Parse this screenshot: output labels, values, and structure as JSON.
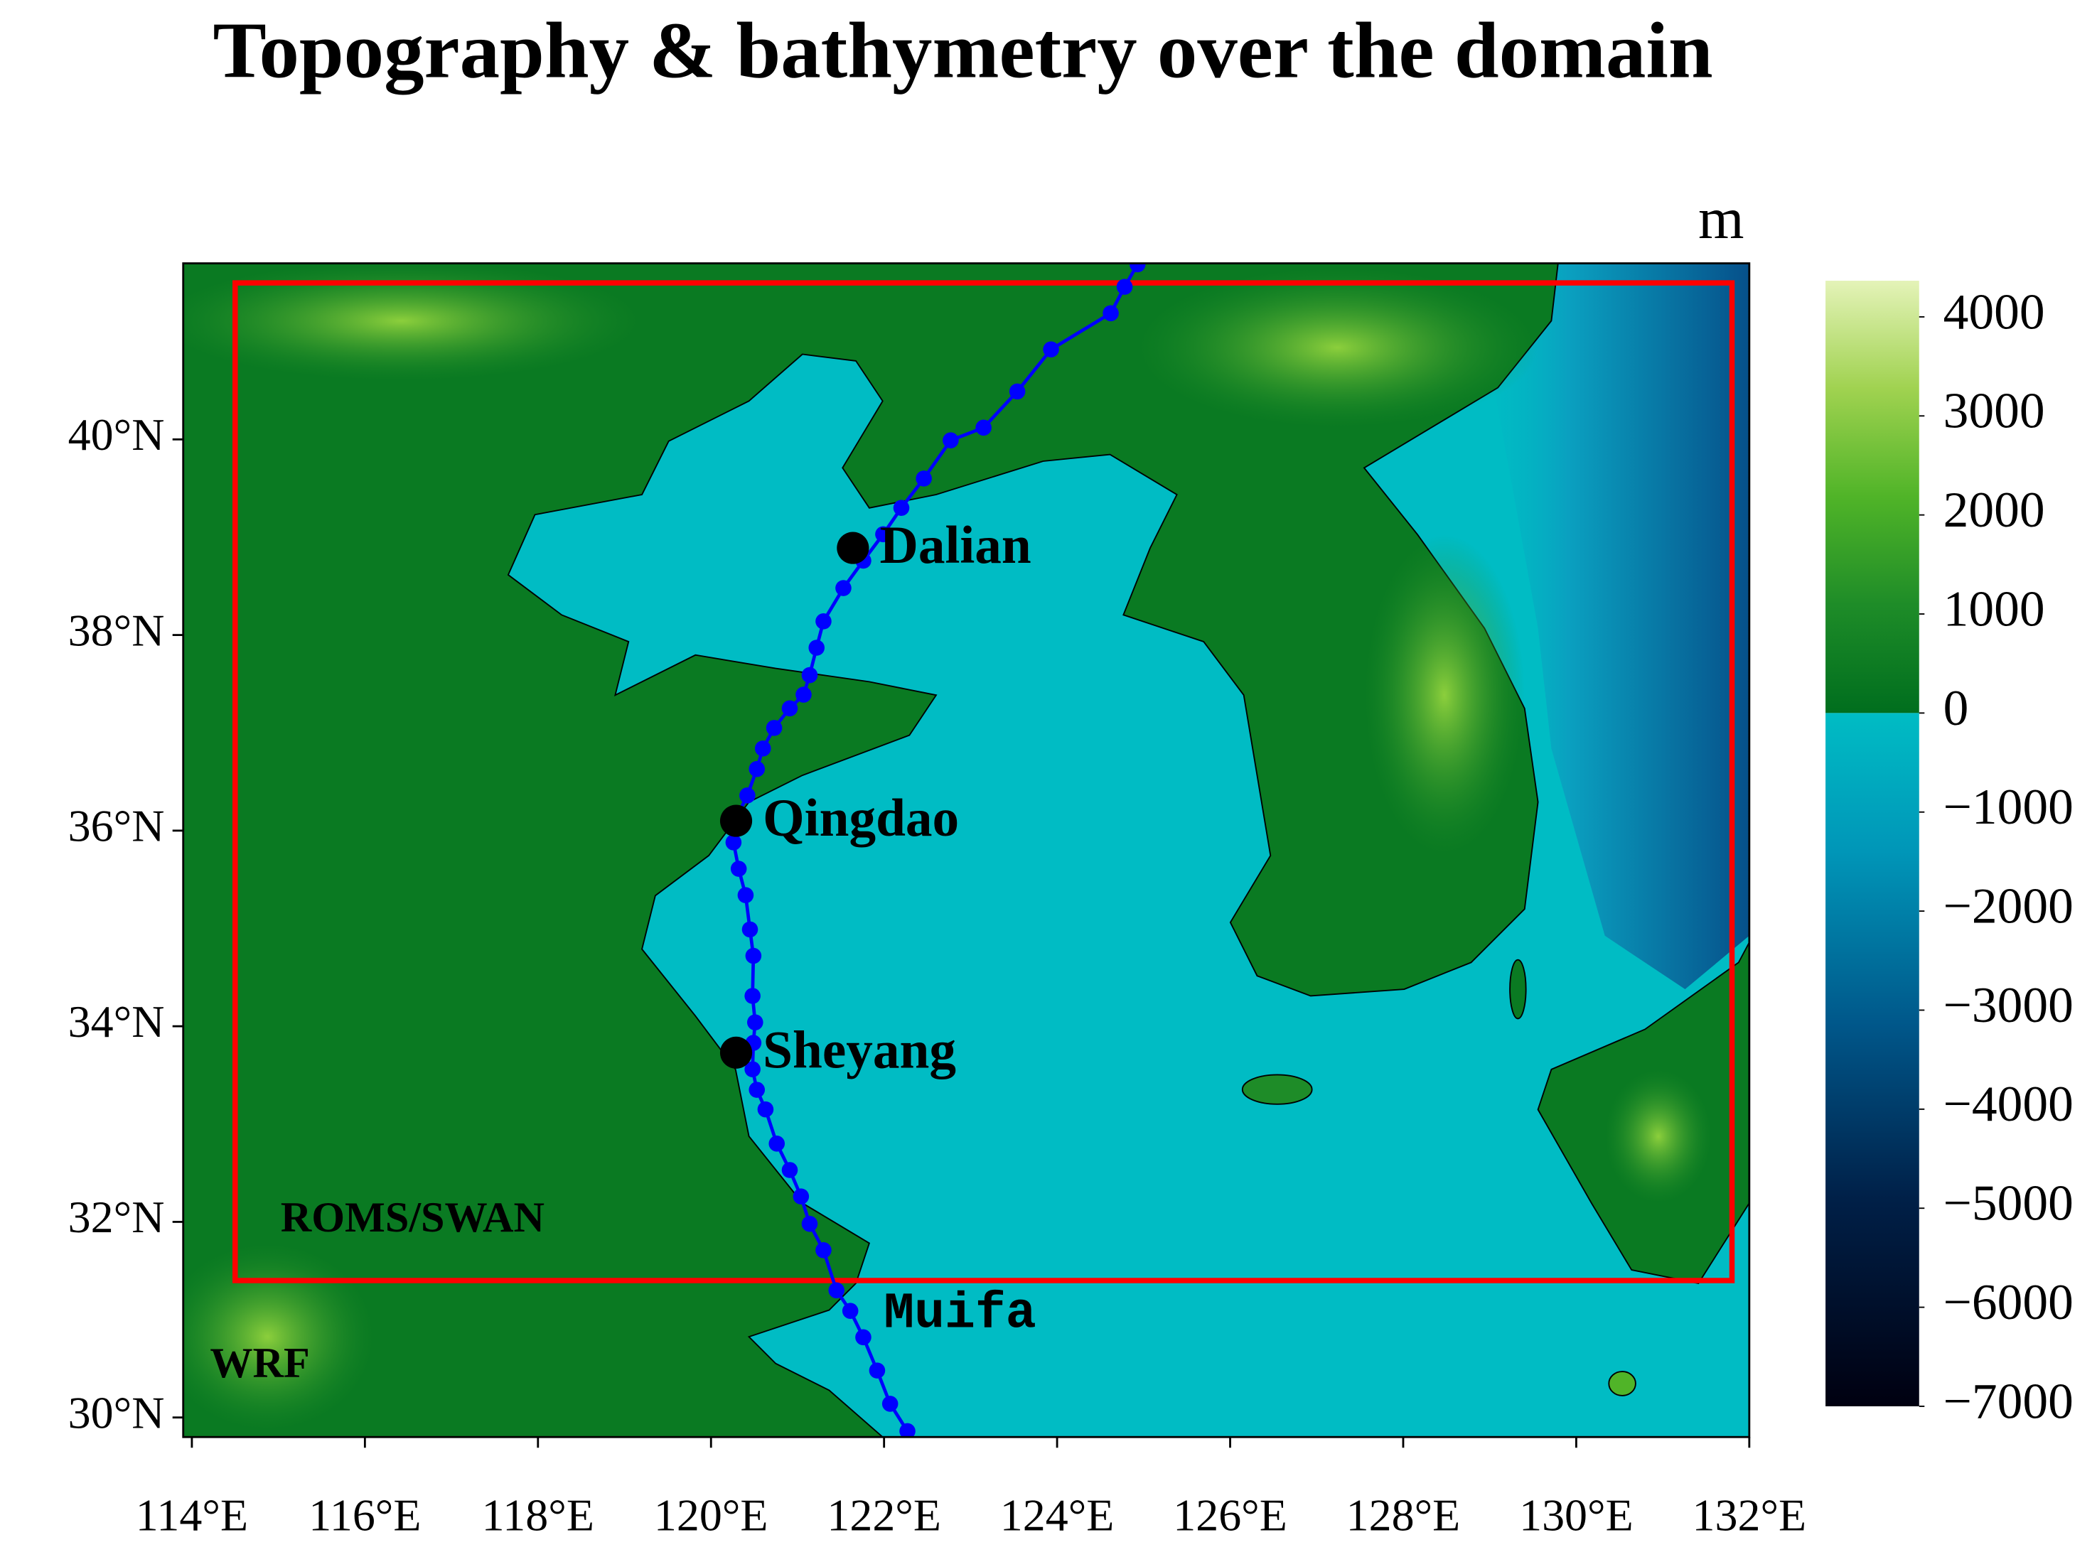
{
  "map": {
    "title": "Topography & bathymetry over the domain",
    "xlim": [
      113.9,
      132.0
    ],
    "ylim": [
      29.8,
      41.8
    ],
    "xticks": [
      {
        "value": 114,
        "label": "114°E"
      },
      {
        "value": 116,
        "label": "116°E"
      },
      {
        "value": 118,
        "label": "118°E"
      },
      {
        "value": 120,
        "label": "120°E"
      },
      {
        "value": 122,
        "label": "122°E"
      },
      {
        "value": 124,
        "label": "124°E"
      },
      {
        "value": 126,
        "label": "126°E"
      },
      {
        "value": 128,
        "label": "128°E"
      },
      {
        "value": 130,
        "label": "130°E"
      },
      {
        "value": 132,
        "label": "132°E"
      }
    ],
    "yticks": [
      {
        "value": 30,
        "label": "30°N"
      },
      {
        "value": 32,
        "label": "32°N"
      },
      {
        "value": 34,
        "label": "34°N"
      },
      {
        "value": 36,
        "label": "36°N"
      },
      {
        "value": 38,
        "label": "38°N"
      },
      {
        "value": 40,
        "label": "40°N"
      }
    ],
    "colorbar": {
      "unit": "m",
      "lim": [
        -7000,
        4365
      ],
      "ticks": [
        4000,
        3000,
        2000,
        1000,
        0,
        {
          "value": -1000,
          "label": "−1000"
        },
        {
          "value": -2000,
          "label": "−2000"
        },
        {
          "value": -3000,
          "label": "−3000"
        },
        {
          "value": -4000,
          "label": "−4000"
        },
        {
          "value": -5000,
          "label": "−5000"
        },
        {
          "value": -6000,
          "label": "−6000"
        },
        {
          "value": -7000,
          "label": "−7000"
        }
      ]
    },
    "cities": [
      {
        "name": "Dalian",
        "lon": 121.64,
        "lat": 38.89
      },
      {
        "name": "Qingdao",
        "lon": 120.29,
        "lat": 36.1
      },
      {
        "name": "Sheyang",
        "lon": 120.29,
        "lat": 33.73
      }
    ],
    "track": {
      "name": "Muifa",
      "color": "#0000ff",
      "lon": [
        122.27,
        122.07,
        121.92,
        121.76,
        121.61,
        121.45,
        121.3,
        121.14,
        121.04,
        120.91,
        120.76,
        120.63,
        120.53,
        120.48,
        120.49,
        120.51,
        120.48,
        120.49,
        120.45,
        120.4,
        120.32,
        120.26,
        120.29,
        120.42,
        120.53,
        120.6,
        120.73,
        120.91,
        121.07,
        121.14,
        121.22,
        121.3,
        121.53,
        121.76,
        121.99,
        122.2,
        122.46,
        122.77,
        123.15,
        123.54,
        123.93,
        124.62,
        124.78,
        124.93
      ],
      "lat": [
        29.86,
        30.14,
        30.48,
        30.82,
        31.09,
        31.3,
        31.71,
        31.98,
        32.26,
        32.53,
        32.8,
        33.15,
        33.35,
        33.56,
        33.83,
        34.04,
        34.31,
        34.72,
        34.99,
        35.34,
        35.61,
        35.88,
        36.13,
        36.36,
        36.63,
        36.84,
        37.05,
        37.25,
        37.39,
        37.59,
        37.87,
        38.14,
        38.48,
        38.76,
        39.03,
        39.3,
        39.6,
        39.99,
        40.12,
        40.49,
        40.92,
        41.29,
        41.56,
        41.79
      ]
    },
    "domains": [
      {
        "label": "ROMS/SWAN",
        "color": "#ff0000",
        "lon": [
          114.5,
          131.8
        ],
        "lat": [
          31.4,
          41.6
        ]
      },
      {
        "label": "WRF",
        "color": "#ff0000"
      }
    ]
  }
}
